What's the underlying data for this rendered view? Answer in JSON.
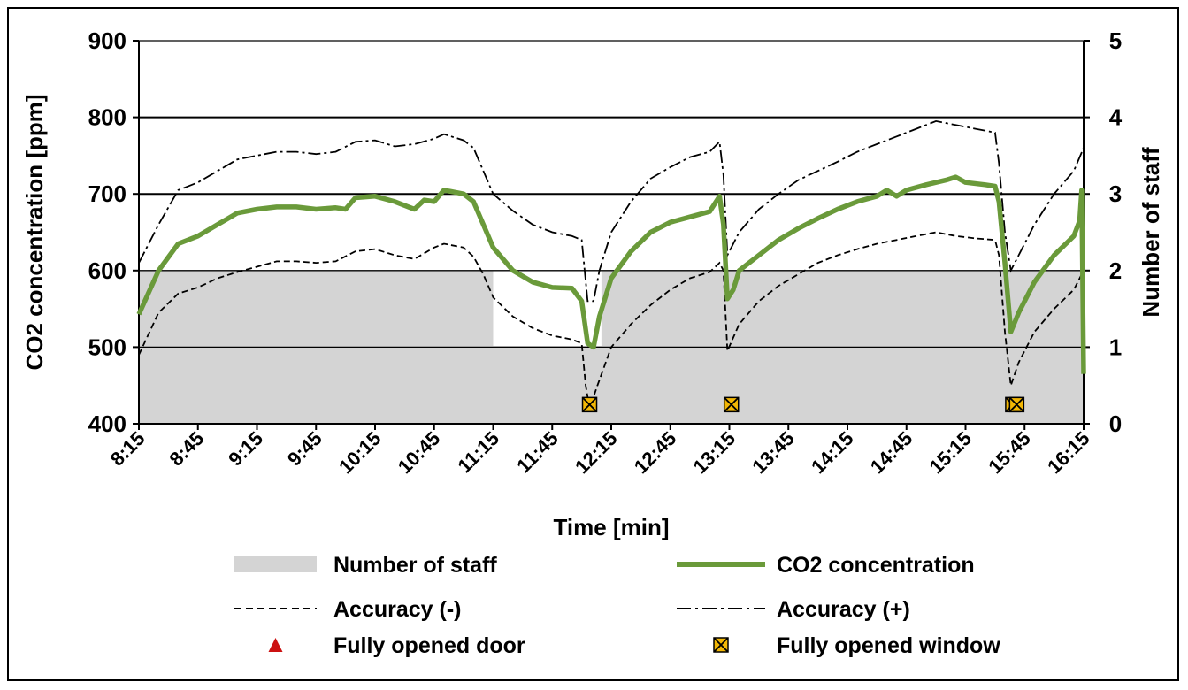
{
  "chart_data": {
    "type": "line",
    "xlabel": "Time [min]",
    "ylabel": "CO2 concentration [ppm]",
    "y2label": "Number of staff",
    "xticks": [
      "8:15",
      "8:45",
      "9:15",
      "9:45",
      "10:15",
      "10:45",
      "11:15",
      "11:45",
      "12:15",
      "12:45",
      "13:15",
      "13:45",
      "14:15",
      "14:45",
      "15:15",
      "15:45",
      "16:15"
    ],
    "xlim_minutes": [
      495,
      975
    ],
    "ylim": [
      400,
      900
    ],
    "yticks": [
      400,
      500,
      600,
      700,
      800,
      900
    ],
    "y2lim": [
      0,
      5
    ],
    "y2ticks": [
      0,
      1,
      2,
      3,
      4,
      5
    ],
    "grid": "horizontal",
    "legend_position": "bottom",
    "colors": {
      "staff": "#d4d4d4",
      "co2": "#6a9a3a",
      "accuracy": "#000000",
      "door": "#cc1111",
      "window_fill": "#f2b705"
    },
    "staff": {
      "name": "Number of staff",
      "times": [
        "8:15",
        "11:15",
        "12:10",
        "16:15"
      ],
      "values": [
        2,
        1,
        2,
        2
      ]
    },
    "co2": {
      "name": "CO2 concentration",
      "points": [
        [
          "8:15",
          543
        ],
        [
          "8:25",
          600
        ],
        [
          "8:35",
          635
        ],
        [
          "8:45",
          645
        ],
        [
          "8:55",
          660
        ],
        [
          "9:05",
          675
        ],
        [
          "9:15",
          680
        ],
        [
          "9:25",
          683
        ],
        [
          "9:35",
          683
        ],
        [
          "9:45",
          680
        ],
        [
          "9:55",
          682
        ],
        [
          "10:00",
          680
        ],
        [
          "10:05",
          695
        ],
        [
          "10:15",
          697
        ],
        [
          "10:25",
          690
        ],
        [
          "10:35",
          680
        ],
        [
          "10:40",
          692
        ],
        [
          "10:45",
          690
        ],
        [
          "10:50",
          705
        ],
        [
          "11:00",
          700
        ],
        [
          "11:05",
          690
        ],
        [
          "11:10",
          660
        ],
        [
          "11:15",
          630
        ],
        [
          "11:25",
          600
        ],
        [
          "11:35",
          585
        ],
        [
          "11:45",
          578
        ],
        [
          "11:55",
          577
        ],
        [
          "12:00",
          560
        ],
        [
          "12:03",
          505
        ],
        [
          "12:06",
          500
        ],
        [
          "12:09",
          540
        ],
        [
          "12:15",
          590
        ],
        [
          "12:25",
          625
        ],
        [
          "12:35",
          650
        ],
        [
          "12:45",
          663
        ],
        [
          "12:55",
          670
        ],
        [
          "13:05",
          677
        ],
        [
          "13:10",
          697
        ],
        [
          "13:12",
          660
        ],
        [
          "13:14",
          563
        ],
        [
          "13:17",
          575
        ],
        [
          "13:20",
          600
        ],
        [
          "13:30",
          620
        ],
        [
          "13:40",
          640
        ],
        [
          "13:50",
          655
        ],
        [
          "14:00",
          668
        ],
        [
          "14:10",
          680
        ],
        [
          "14:20",
          690
        ],
        [
          "14:30",
          697
        ],
        [
          "14:35",
          705
        ],
        [
          "14:40",
          697
        ],
        [
          "14:45",
          705
        ],
        [
          "14:55",
          712
        ],
        [
          "15:05",
          718
        ],
        [
          "15:10",
          722
        ],
        [
          "15:15",
          715
        ],
        [
          "15:25",
          712
        ],
        [
          "15:30",
          710
        ],
        [
          "15:32",
          690
        ],
        [
          "15:35",
          610
        ],
        [
          "15:38",
          520
        ],
        [
          "15:42",
          545
        ],
        [
          "15:50",
          585
        ],
        [
          "16:00",
          620
        ],
        [
          "16:10",
          645
        ],
        [
          "16:13",
          665
        ],
        [
          "16:14",
          705
        ],
        [
          "16:15",
          465
        ]
      ]
    },
    "accuracy_minus": {
      "name": "Accuracy (-)",
      "points": [
        [
          "8:15",
          490
        ],
        [
          "8:25",
          545
        ],
        [
          "8:35",
          570
        ],
        [
          "8:45",
          578
        ],
        [
          "8:55",
          590
        ],
        [
          "9:05",
          598
        ],
        [
          "9:15",
          605
        ],
        [
          "9:25",
          612
        ],
        [
          "9:35",
          612
        ],
        [
          "9:45",
          610
        ],
        [
          "9:55",
          612
        ],
        [
          "10:05",
          625
        ],
        [
          "10:15",
          628
        ],
        [
          "10:25",
          620
        ],
        [
          "10:35",
          615
        ],
        [
          "10:45",
          630
        ],
        [
          "10:50",
          635
        ],
        [
          "11:00",
          630
        ],
        [
          "11:05",
          618
        ],
        [
          "11:10",
          595
        ],
        [
          "11:15",
          565
        ],
        [
          "11:25",
          540
        ],
        [
          "11:35",
          525
        ],
        [
          "11:45",
          515
        ],
        [
          "11:55",
          510
        ],
        [
          "12:00",
          505
        ],
        [
          "12:02",
          450
        ],
        [
          "12:04",
          420
        ],
        [
          "12:08",
          450
        ],
        [
          "12:15",
          500
        ],
        [
          "12:25",
          530
        ],
        [
          "12:35",
          555
        ],
        [
          "12:45",
          575
        ],
        [
          "12:55",
          590
        ],
        [
          "13:05",
          598
        ],
        [
          "13:10",
          610
        ],
        [
          "13:12",
          600
        ],
        [
          "13:14",
          495
        ],
        [
          "13:20",
          530
        ],
        [
          "13:30",
          560
        ],
        [
          "13:40",
          580
        ],
        [
          "13:50",
          595
        ],
        [
          "14:00",
          610
        ],
        [
          "14:10",
          620
        ],
        [
          "14:20",
          628
        ],
        [
          "14:30",
          635
        ],
        [
          "14:40",
          640
        ],
        [
          "14:50",
          645
        ],
        [
          "15:00",
          650
        ],
        [
          "15:10",
          645
        ],
        [
          "15:20",
          642
        ],
        [
          "15:30",
          640
        ],
        [
          "15:32",
          620
        ],
        [
          "15:35",
          520
        ],
        [
          "15:38",
          450
        ],
        [
          "15:42",
          480
        ],
        [
          "15:50",
          520
        ],
        [
          "16:00",
          550
        ],
        [
          "16:10",
          575
        ],
        [
          "16:15",
          600
        ]
      ]
    },
    "accuracy_plus": {
      "name": "Accuracy (+)",
      "points": [
        [
          "8:15",
          610
        ],
        [
          "8:25",
          660
        ],
        [
          "8:35",
          705
        ],
        [
          "8:45",
          715
        ],
        [
          "8:55",
          730
        ],
        [
          "9:05",
          745
        ],
        [
          "9:15",
          750
        ],
        [
          "9:25",
          755
        ],
        [
          "9:35",
          755
        ],
        [
          "9:45",
          752
        ],
        [
          "9:55",
          755
        ],
        [
          "10:05",
          768
        ],
        [
          "10:15",
          770
        ],
        [
          "10:25",
          762
        ],
        [
          "10:35",
          765
        ],
        [
          "10:45",
          772
        ],
        [
          "10:50",
          778
        ],
        [
          "11:00",
          770
        ],
        [
          "11:05",
          760
        ],
        [
          "11:10",
          730
        ],
        [
          "11:15",
          700
        ],
        [
          "11:25",
          678
        ],
        [
          "11:35",
          660
        ],
        [
          "11:45",
          650
        ],
        [
          "11:55",
          645
        ],
        [
          "12:00",
          640
        ],
        [
          "12:03",
          560
        ],
        [
          "12:06",
          560
        ],
        [
          "12:09",
          600
        ],
        [
          "12:15",
          650
        ],
        [
          "12:25",
          690
        ],
        [
          "12:35",
          720
        ],
        [
          "12:45",
          735
        ],
        [
          "12:55",
          748
        ],
        [
          "13:05",
          755
        ],
        [
          "13:10",
          768
        ],
        [
          "13:12",
          725
        ],
        [
          "13:14",
          620
        ],
        [
          "13:20",
          650
        ],
        [
          "13:30",
          680
        ],
        [
          "13:40",
          700
        ],
        [
          "13:50",
          718
        ],
        [
          "14:00",
          730
        ],
        [
          "14:10",
          742
        ],
        [
          "14:20",
          755
        ],
        [
          "14:30",
          765
        ],
        [
          "14:40",
          775
        ],
        [
          "14:50",
          785
        ],
        [
          "15:00",
          795
        ],
        [
          "15:10",
          790
        ],
        [
          "15:20",
          785
        ],
        [
          "15:30",
          780
        ],
        [
          "15:32",
          740
        ],
        [
          "15:35",
          650
        ],
        [
          "15:38",
          600
        ],
        [
          "15:42",
          620
        ],
        [
          "15:50",
          660
        ],
        [
          "16:00",
          700
        ],
        [
          "16:10",
          730
        ],
        [
          "16:15",
          760
        ]
      ]
    },
    "window_markers": {
      "name": "Fully opened window",
      "times": [
        "12:04",
        "13:16",
        "15:39",
        "15:41"
      ],
      "y": 425
    },
    "door_markers": {
      "name": "Fully opened door",
      "times": []
    },
    "legend": [
      {
        "label": "Number of staff",
        "symbol": "area"
      },
      {
        "label": "CO2 concentration",
        "symbol": "thick-line"
      },
      {
        "label": "Accuracy (-)",
        "symbol": "dashed-line"
      },
      {
        "label": "Accuracy (+)",
        "symbol": "dash-dot-line"
      },
      {
        "label": "Fully opened door",
        "symbol": "red-triangle"
      },
      {
        "label": "Fully opened window",
        "symbol": "crossed-square"
      }
    ]
  }
}
